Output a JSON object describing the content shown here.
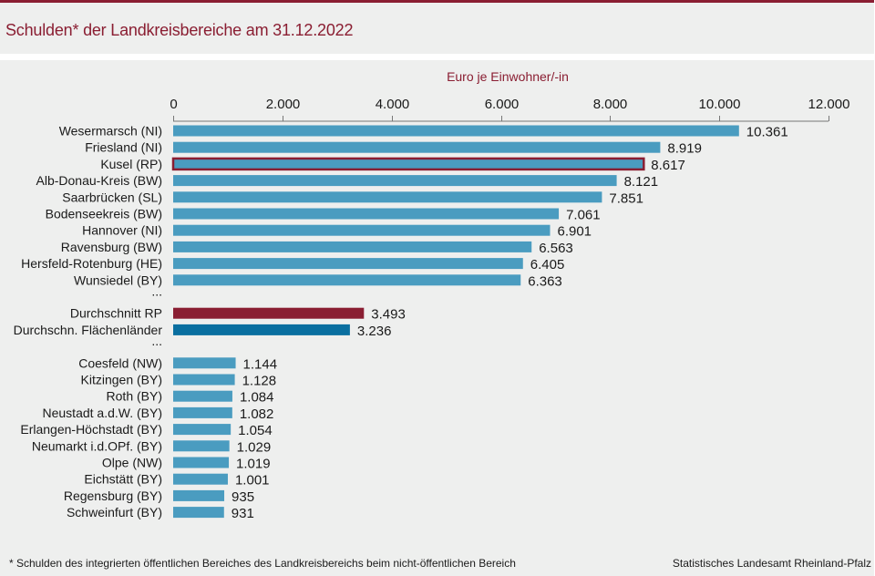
{
  "header": {
    "title": "Schulden* der Landkreisbereiche am 31.12.2022"
  },
  "footer": {
    "note": "* Schulden des integrierten  öffentlichen  Bereiches des Landkreisbereichs  beim nicht-öffentlichen  Bereich",
    "source": "Statistisches Landesamt Rheinland-Pfalz"
  },
  "colors": {
    "bar": "#4a9cc0",
    "highlight_border": "#8a1e32",
    "avg_rp": "#8a1e32",
    "avg_flaechen": "#0a6fa0",
    "accent": "#8a1e32"
  },
  "chart_data": {
    "type": "bar",
    "orientation": "horizontal",
    "title": "Schulden* der Landkreisbereiche am 31.12.2022",
    "xlabel": "Euro je Einwohner/-in",
    "xlim": [
      0,
      12000
    ],
    "xticks": [
      0,
      2000,
      4000,
      6000,
      8000,
      10000,
      12000
    ],
    "xtick_labels": [
      "0",
      "2.000",
      "4.000",
      "6.000",
      "8.000",
      "10.000",
      "12.000"
    ],
    "ellipsis": "...",
    "rows": [
      {
        "label": "Wesermarsch (NI)",
        "value": 10361,
        "value_label": "10.361",
        "kind": "normal"
      },
      {
        "label": "Friesland (NI)",
        "value": 8919,
        "value_label": "8.919",
        "kind": "normal"
      },
      {
        "label": "Kusel (RP)",
        "value": 8617,
        "value_label": "8.617",
        "kind": "highlight"
      },
      {
        "label": "Alb-Donau-Kreis (BW)",
        "value": 8121,
        "value_label": "8.121",
        "kind": "normal"
      },
      {
        "label": "Saarbrücken (SL)",
        "value": 7851,
        "value_label": "7.851",
        "kind": "normal"
      },
      {
        "label": "Bodenseekreis (BW)",
        "value": 7061,
        "value_label": "7.061",
        "kind": "normal"
      },
      {
        "label": "Hannover (NI)",
        "value": 6901,
        "value_label": "6.901",
        "kind": "normal"
      },
      {
        "label": "Ravensburg (BW)",
        "value": 6563,
        "value_label": "6.563",
        "kind": "normal"
      },
      {
        "label": "Hersfeld-Rotenburg (HE)",
        "value": 6405,
        "value_label": "6.405",
        "kind": "normal"
      },
      {
        "label": "Wunsiedel (BY)",
        "value": 6363,
        "value_label": "6.363",
        "kind": "normal"
      },
      {
        "label": "...",
        "value": null,
        "value_label": "",
        "kind": "ellipsis"
      },
      {
        "label": "Durchschnitt RP",
        "value": 3493,
        "value_label": "3.493",
        "kind": "avg_rp"
      },
      {
        "label": "Durchschn. Flächenländer",
        "value": 3236,
        "value_label": "3.236",
        "kind": "avg_flaechen"
      },
      {
        "label": "...",
        "value": null,
        "value_label": "",
        "kind": "ellipsis"
      },
      {
        "label": "Coesfeld (NW)",
        "value": 1144,
        "value_label": "1.144",
        "kind": "normal"
      },
      {
        "label": "Kitzingen (BY)",
        "value": 1128,
        "value_label": "1.128",
        "kind": "normal"
      },
      {
        "label": "Roth (BY)",
        "value": 1084,
        "value_label": "1.084",
        "kind": "normal"
      },
      {
        "label": "Neustadt a.d.W. (BY)",
        "value": 1082,
        "value_label": "1.082",
        "kind": "normal"
      },
      {
        "label": "Erlangen-Höchstadt (BY)",
        "value": 1054,
        "value_label": "1.054",
        "kind": "normal"
      },
      {
        "label": "Neumarkt i.d.OPf. (BY)",
        "value": 1029,
        "value_label": "1.029",
        "kind": "normal"
      },
      {
        "label": "Olpe (NW)",
        "value": 1019,
        "value_label": "1.019",
        "kind": "normal"
      },
      {
        "label": "Eichstätt (BY)",
        "value": 1001,
        "value_label": "1.001",
        "kind": "normal"
      },
      {
        "label": "Regensburg (BY)",
        "value": 935,
        "value_label": "935",
        "kind": "normal"
      },
      {
        "label": "Schweinfurt (BY)",
        "value": 931,
        "value_label": "931",
        "kind": "normal"
      }
    ]
  }
}
